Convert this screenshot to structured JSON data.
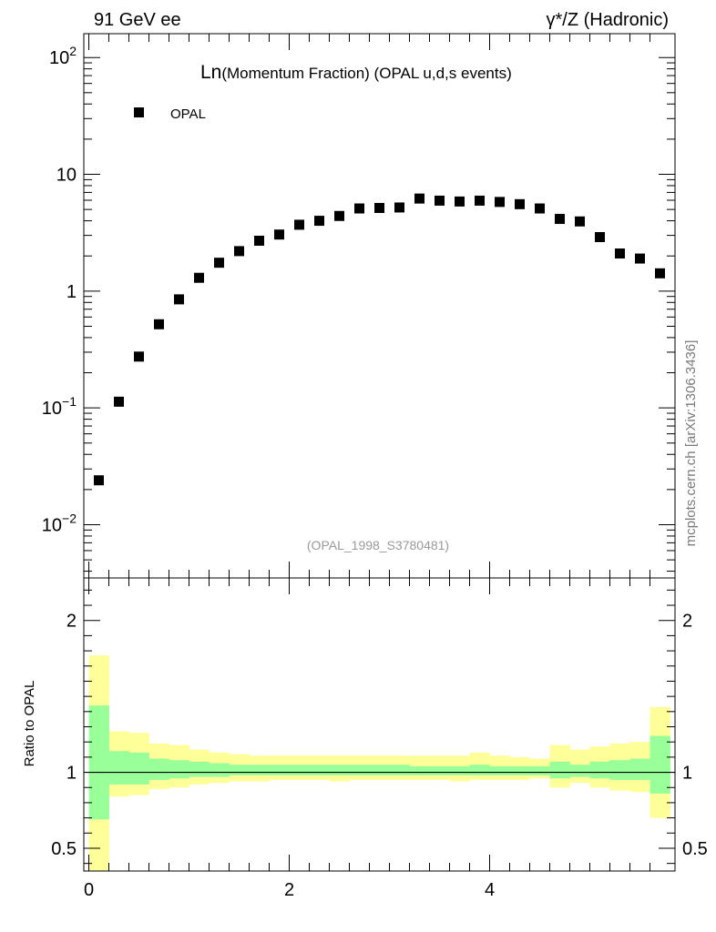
{
  "header": {
    "left_label": "91 GeV ee",
    "right_label": "γ*/Z (Hadronic)"
  },
  "side_label": "mcplots.cern.ch [arXiv:1306.3436]",
  "chart_data": [
    {
      "type": "scatter",
      "title_prefix": "Ln",
      "title": "(Momentum Fraction) (OPAL u,d,s events)",
      "analysis_note": "(OPAL_1998_S3780481)",
      "yscale": "log",
      "xlim": [
        -0.05,
        5.85
      ],
      "ylim": [
        0.0035,
        160
      ],
      "y_ticks": [
        {
          "value": 0.01,
          "base": "10",
          "exp": "−2"
        },
        {
          "value": 0.1,
          "base": "10",
          "exp": "−1"
        },
        {
          "value": 1,
          "label": "1"
        },
        {
          "value": 10,
          "label": "10"
        },
        {
          "value": 100,
          "base": "10",
          "exp": "2"
        }
      ],
      "legend": {
        "position": "top-left",
        "entries": [
          {
            "name": "OPAL",
            "marker": "square",
            "color": "#000000"
          }
        ]
      },
      "series": [
        {
          "name": "OPAL",
          "x": [
            0.1,
            0.3,
            0.5,
            0.7,
            0.9,
            1.1,
            1.3,
            1.5,
            1.7,
            1.9,
            2.1,
            2.3,
            2.5,
            2.7,
            2.9,
            3.1,
            3.3,
            3.5,
            3.7,
            3.9,
            4.1,
            4.3,
            4.5,
            4.7,
            4.9,
            5.1,
            5.3,
            5.5,
            5.7
          ],
          "y": [
            0.024,
            0.113,
            0.275,
            0.52,
            0.85,
            1.3,
            1.75,
            2.2,
            2.7,
            3.05,
            3.7,
            4.0,
            4.4,
            5.1,
            5.15,
            5.2,
            6.2,
            5.95,
            5.85,
            5.95,
            5.8,
            5.55,
            5.1,
            4.15,
            3.95,
            2.9,
            2.1,
            1.9,
            1.42
          ]
        }
      ]
    },
    {
      "type": "area",
      "ylabel": "Ratio to OPAL",
      "xlim": [
        -0.05,
        5.85
      ],
      "ylim": [
        0.35,
        2.28
      ],
      "x_ticks": [
        0,
        2,
        4
      ],
      "y_ticks": [
        0.5,
        1,
        2
      ],
      "reference_line": 1,
      "bin_edges": [
        0,
        0.2,
        0.4,
        0.6,
        0.8,
        1.0,
        1.2,
        1.4,
        1.6,
        1.8,
        2.0,
        2.2,
        2.4,
        2.6,
        2.8,
        3.0,
        3.2,
        3.4,
        3.6,
        3.8,
        4.0,
        4.2,
        4.4,
        4.6,
        4.8,
        5.0,
        5.2,
        5.4,
        5.6,
        5.8
      ],
      "bands": [
        {
          "name": "outer",
          "color": "#ffff99",
          "low": [
            0.35,
            0.84,
            0.85,
            0.89,
            0.9,
            0.92,
            0.93,
            0.94,
            0.94,
            0.95,
            0.95,
            0.95,
            0.94,
            0.95,
            0.95,
            0.95,
            0.95,
            0.95,
            0.94,
            0.95,
            0.95,
            0.95,
            0.96,
            0.9,
            0.93,
            0.9,
            0.88,
            0.87,
            0.7
          ],
          "high": [
            1.77,
            1.27,
            1.26,
            1.19,
            1.18,
            1.15,
            1.13,
            1.12,
            1.11,
            1.11,
            1.11,
            1.11,
            1.11,
            1.11,
            1.11,
            1.11,
            1.11,
            1.11,
            1.11,
            1.13,
            1.11,
            1.1,
            1.09,
            1.18,
            1.15,
            1.17,
            1.19,
            1.2,
            1.43
          ]
        },
        {
          "name": "inner",
          "color": "#99ff99",
          "low": [
            0.69,
            0.92,
            0.92,
            0.95,
            0.96,
            0.97,
            0.97,
            0.98,
            0.98,
            0.98,
            0.98,
            0.98,
            0.98,
            0.98,
            0.98,
            0.98,
            0.98,
            0.98,
            0.98,
            0.98,
            0.98,
            0.98,
            0.98,
            0.96,
            0.97,
            0.96,
            0.95,
            0.95,
            0.86
          ],
          "high": [
            1.44,
            1.14,
            1.13,
            1.09,
            1.08,
            1.07,
            1.06,
            1.05,
            1.05,
            1.05,
            1.05,
            1.05,
            1.05,
            1.05,
            1.05,
            1.05,
            1.04,
            1.04,
            1.04,
            1.05,
            1.04,
            1.04,
            1.04,
            1.07,
            1.05,
            1.07,
            1.08,
            1.09,
            1.24
          ]
        }
      ]
    }
  ]
}
